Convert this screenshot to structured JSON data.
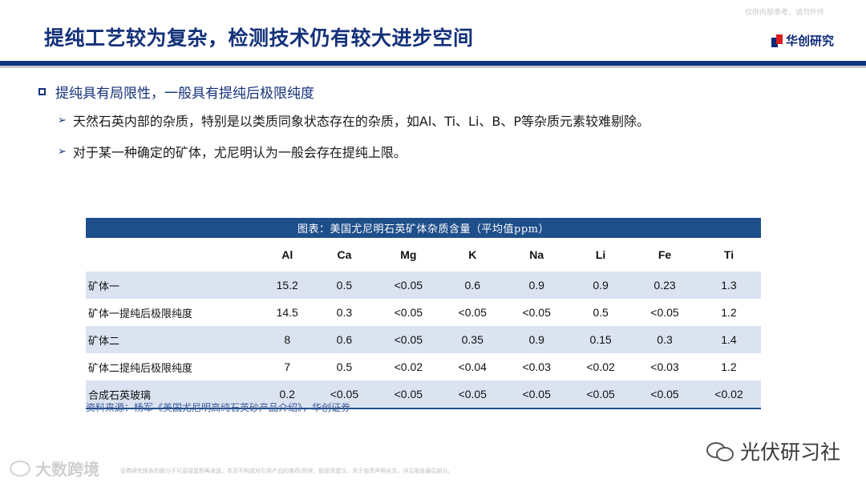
{
  "top_note": "仅供内部参考，请勿外传",
  "title": "提纯工艺较为复杂，检测技术仍有较大进步空间",
  "logo": {
    "text": "华创研究",
    "colors": {
      "navy": "#0d2a7a",
      "red": "#d81e1e"
    }
  },
  "bullets": {
    "main": "提纯具有局限性，一般具有提纯后极限纯度",
    "subs": [
      "天然石英内部的杂质，特别是以类质同象状态存在的杂质，如Al、Ti、Li、B、P等杂质元素较难剔除。",
      "对于某一种确定的矿体，尤尼明认为一般会存在提纯上限。"
    ]
  },
  "table": {
    "caption": "图表：美国尤尼明石英矿体杂质含量（平均值ppm）",
    "headers": [
      "",
      "Al",
      "Ca",
      "Mg",
      "K",
      "Na",
      "Li",
      "Fe",
      "Ti"
    ],
    "rows": [
      [
        "矿体一",
        "15.2",
        "0.5",
        "<0.05",
        "0.6",
        "0.9",
        "0.9",
        "0.23",
        "1.3"
      ],
      [
        "矿体一提纯后极限纯度",
        "14.5",
        "0.3",
        "<0.05",
        "<0.05",
        "<0.05",
        "0.5",
        "<0.05",
        "1.2"
      ],
      [
        "矿体二",
        "8",
        "0.6",
        "<0.05",
        "0.35",
        "0.9",
        "0.15",
        "0.3",
        "1.4"
      ],
      [
        "矿体二提纯后极限纯度",
        "7",
        "0.5",
        "<0.02",
        "<0.04",
        "<0.03",
        "<0.02",
        "<0.03",
        "1.2"
      ],
      [
        "合成石英玻璃",
        "0.2",
        "<0.05",
        "<0.05",
        "<0.05",
        "<0.05",
        "<0.05",
        "<0.05",
        "<0.02"
      ]
    ],
    "colors": {
      "caption_bg": "#1f4f8b",
      "shade": "#dbe3f1"
    }
  },
  "source": "资料来源：杨军《美国尤尼明高纯石英砂产品介绍》，华创证券",
  "disclaimer": "证券研究报告的部分不可直接复制再发送。本页不构成对引用产品的推荐/担保，股投资建议，关于免责声明全文，详见报告最后部分。",
  "watermark_left": "大数跨境",
  "watermark_right": "光伏研习社"
}
